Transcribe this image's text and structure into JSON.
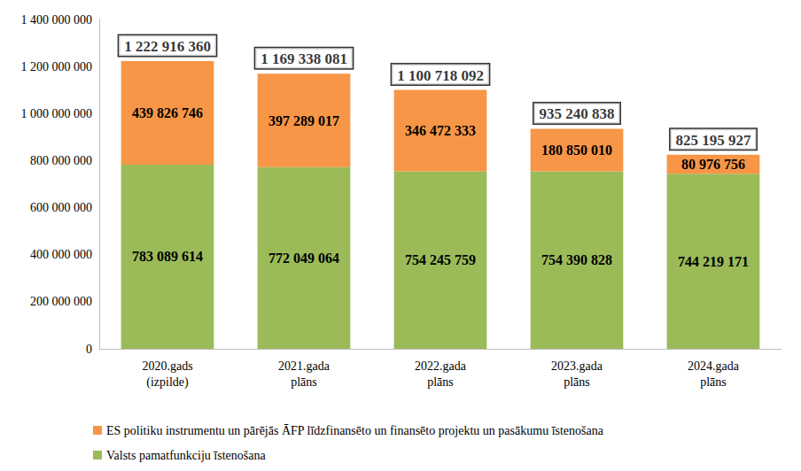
{
  "chart_data": {
    "type": "bar",
    "stacked": true,
    "data_labels": true,
    "grid": false,
    "legend": "bottom",
    "categories": [
      "2020.gads\n(izpilde)",
      "2021.gada\nplāns",
      "2022.gada\nplāns",
      "2023.gada\nplāns",
      "2024.gada\nplāns"
    ],
    "series": [
      {
        "name": "Valsts pamatfunkciju īstenošana",
        "color": "#9bbb59",
        "values": [
          783089614,
          772049064,
          754245759,
          754390828,
          744219171
        ],
        "value_labels": [
          "783 089 614",
          "772 049 064",
          "754 245 759",
          "754 390 828",
          "744 219 171"
        ]
      },
      {
        "name": "ES politiku instrumentu un pārējās ĀFP līdzfinansēto un finansēto projektu un pasākumu īstenošana",
        "color": "#f79646",
        "values": [
          439826746,
          397289017,
          346472333,
          180850010,
          80976756
        ],
        "value_labels": [
          "439 826 746",
          "397 289 017",
          "346 472 333",
          "180 850 010",
          "80 976 756"
        ]
      }
    ],
    "totals": {
      "values": [
        1222916360,
        1169338081,
        1100718092,
        935240838,
        825195927
      ],
      "value_labels": [
        "1 222 916 360",
        "1 169 338 081",
        "1 100 718 092",
        "935 240 838",
        "825 195 927"
      ]
    },
    "ylim": [
      0,
      1400000000
    ],
    "yticks": [
      0,
      {
        "value": 200000000,
        "label": "200 000 000"
      },
      {
        "value": 400000000,
        "label": "400 000 000"
      },
      {
        "value": 600000000,
        "label": "600 000 000"
      },
      {
        "value": 800000000,
        "label": "800 000 000"
      },
      {
        "value": 1000000000,
        "label": "1 000 000 000"
      },
      {
        "value": 1200000000,
        "label": "1 200 000 000"
      },
      {
        "value": 1400000000,
        "label": "1 400 000 000"
      }
    ]
  }
}
